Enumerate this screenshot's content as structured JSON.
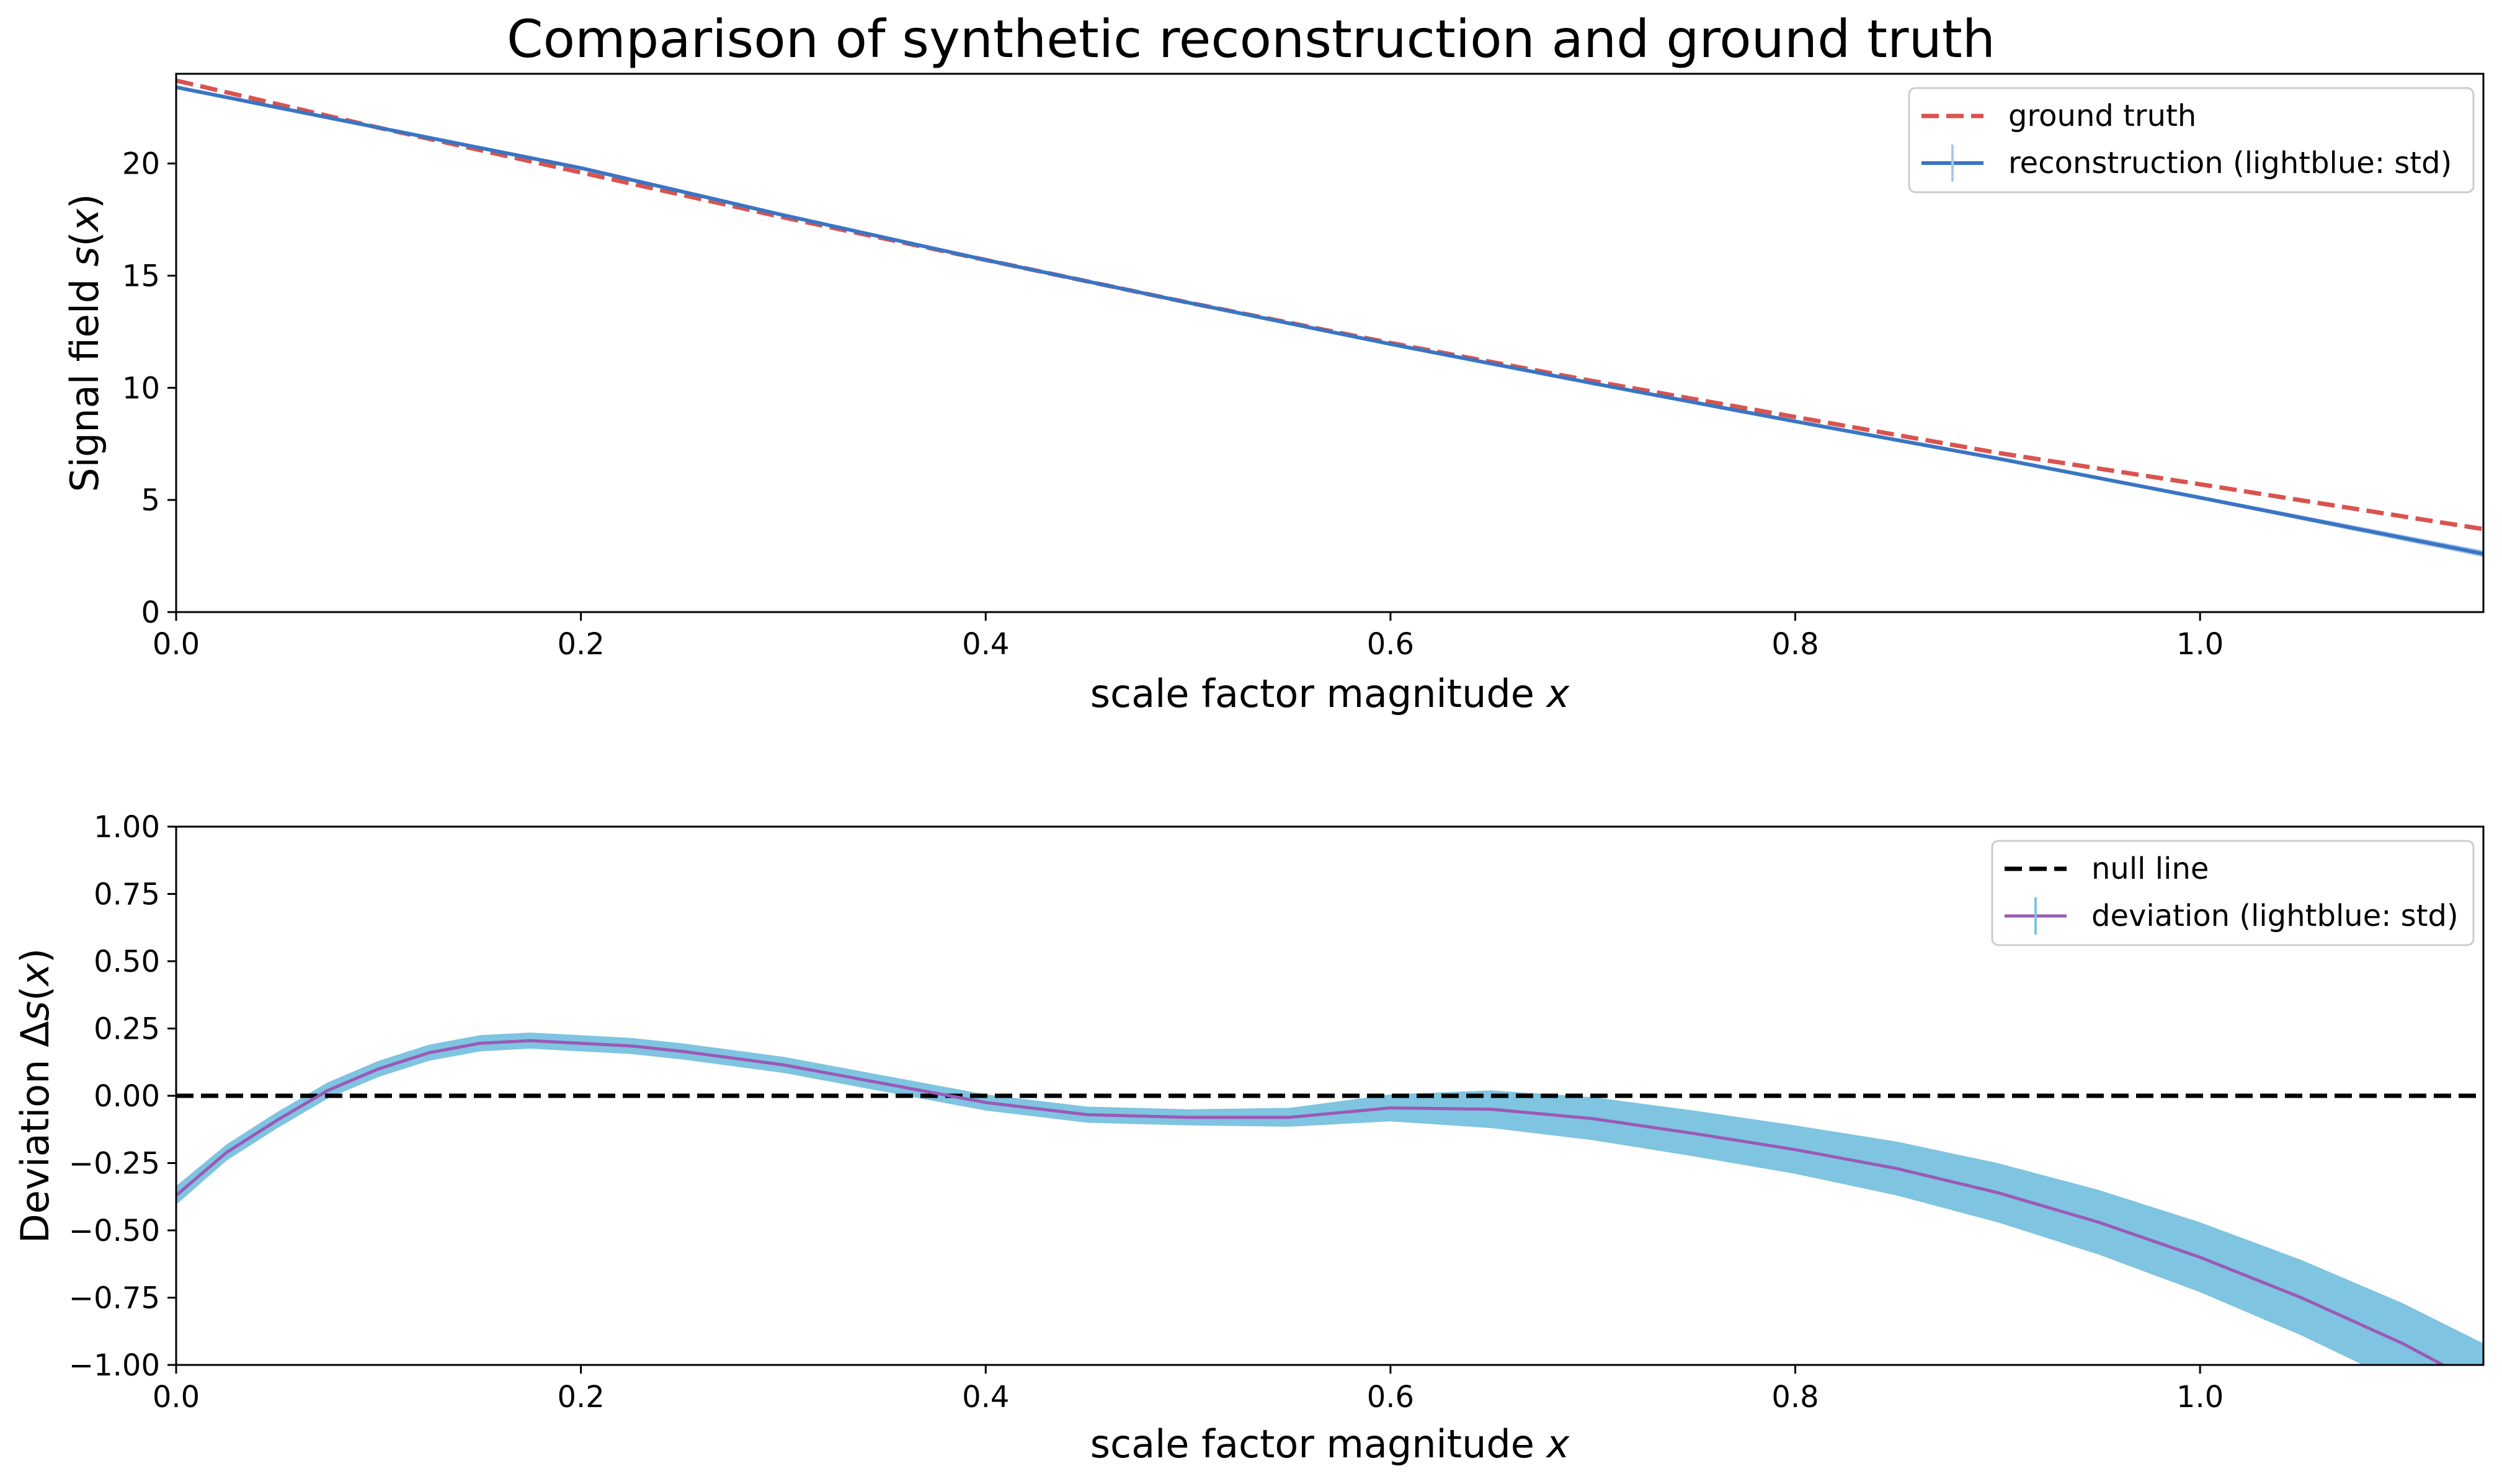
{
  "title": "Comparison of synthetic reconstruction and ground truth",
  "colors": {
    "ground_truth": "#d9534f",
    "reconstruction": "#3a75c4",
    "reconstruction_band": "#a9c8ee",
    "deviation": "#9b59b6",
    "deviation_band": "#7fc4e1",
    "null_line": "#000000"
  },
  "chart_data": [
    {
      "type": "line",
      "xlabel": "scale factor magnitude x",
      "ylabel": "Signal field s(x)",
      "xlim": [
        0,
        1.14
      ],
      "ylim": [
        0,
        24
      ],
      "xticks": [
        "0.0",
        "0.2",
        "0.4",
        "0.6",
        "0.8",
        "1.0"
      ],
      "yticks": [
        "0",
        "5",
        "10",
        "15",
        "20"
      ],
      "legend_position": "top-right",
      "legend": [
        "ground truth",
        "reconstruction (lightblue: std)"
      ],
      "series": [
        {
          "name": "ground truth",
          "style": "dashed",
          "x": [
            0.0,
            0.1,
            0.2,
            0.3,
            0.4,
            0.5,
            0.6,
            0.7,
            0.8,
            0.9,
            1.0,
            1.14
          ],
          "y": [
            23.7,
            21.6,
            19.6,
            17.6,
            15.7,
            13.8,
            12.0,
            10.3,
            8.7,
            7.1,
            5.7,
            3.7
          ]
        },
        {
          "name": "reconstruction (lightblue: std)",
          "style": "solid",
          "x": [
            0.0,
            0.1,
            0.2,
            0.3,
            0.4,
            0.5,
            0.6,
            0.7,
            0.8,
            0.9,
            1.0,
            1.14
          ],
          "y": [
            23.4,
            21.6,
            19.8,
            17.7,
            15.7,
            13.8,
            11.95,
            10.2,
            8.5,
            6.85,
            5.1,
            2.6
          ],
          "std": [
            0.04,
            0.02,
            0.02,
            0.02,
            0.02,
            0.02,
            0.02,
            0.03,
            0.04,
            0.05,
            0.08,
            0.15
          ]
        }
      ]
    },
    {
      "type": "line",
      "xlabel": "scale factor magnitude x",
      "ylabel": "Deviation Δs(x)",
      "xlim": [
        0,
        1.14
      ],
      "ylim": [
        -1.0,
        1.0
      ],
      "xticks": [
        "0.0",
        "0.2",
        "0.4",
        "0.6",
        "0.8",
        "1.0"
      ],
      "yticks": [
        "−1.00",
        "−0.75",
        "−0.50",
        "−0.25",
        "0.00",
        "0.25",
        "0.50",
        "0.75",
        "1.00"
      ],
      "legend_position": "top-right",
      "legend": [
        "null line",
        "deviation (lightblue: std)"
      ],
      "series": [
        {
          "name": "null line",
          "style": "dashed",
          "x": [
            0.0,
            1.14
          ],
          "y": [
            0.0,
            0.0
          ]
        },
        {
          "name": "deviation (lightblue: std)",
          "style": "solid",
          "x": [
            0.0,
            0.025,
            0.05,
            0.075,
            0.1,
            0.125,
            0.15,
            0.175,
            0.2,
            0.225,
            0.25,
            0.3,
            0.35,
            0.4,
            0.45,
            0.5,
            0.55,
            0.6,
            0.65,
            0.7,
            0.75,
            0.8,
            0.85,
            0.9,
            0.95,
            1.0,
            1.05,
            1.1,
            1.14
          ],
          "y": [
            -0.37,
            -0.21,
            -0.09,
            0.02,
            0.1,
            0.16,
            0.195,
            0.205,
            0.195,
            0.185,
            0.165,
            0.115,
            0.045,
            -0.025,
            -0.07,
            -0.08,
            -0.08,
            -0.045,
            -0.05,
            -0.085,
            -0.14,
            -0.2,
            -0.27,
            -0.36,
            -0.47,
            -0.6,
            -0.75,
            -0.92,
            -1.08
          ],
          "std": [
            0.035,
            0.03,
            0.03,
            0.03,
            0.03,
            0.03,
            0.03,
            0.03,
            0.03,
            0.03,
            0.03,
            0.03,
            0.03,
            0.03,
            0.03,
            0.03,
            0.035,
            0.05,
            0.07,
            0.08,
            0.085,
            0.09,
            0.1,
            0.11,
            0.12,
            0.13,
            0.14,
            0.15,
            0.16
          ]
        }
      ]
    }
  ]
}
